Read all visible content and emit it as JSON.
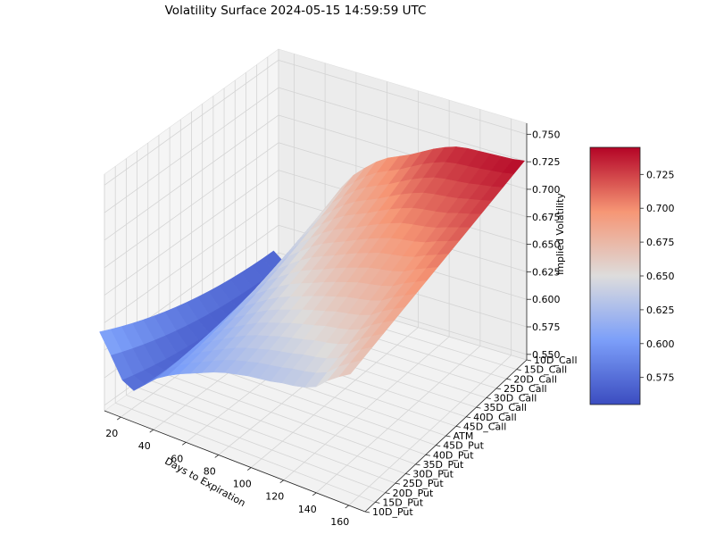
{
  "chart_data": {
    "type": "surface3d",
    "title": "Volatility Surface 2024-05-15 14:59:59 UTC",
    "xlabel": "Days to Expiration",
    "ylabel": "",
    "zlabel": "Implied Volatility",
    "colormap": "coolwarm",
    "x_ticks": [
      20,
      40,
      60,
      80,
      100,
      120,
      140,
      160
    ],
    "y_categories": [
      "10D_Put",
      "15D_Put",
      "20D_Put",
      "25D_Put",
      "30D_Put",
      "35D_Put",
      "40D_Put",
      "45D_Put",
      "ATM",
      "45D_Call",
      "40D_Call",
      "35D_Call",
      "30D_Call",
      "25D_Call",
      "20D_Call",
      "15D_Call",
      "10D_Call"
    ],
    "z_ticks": [
      "0.550",
      "0.575",
      "0.600",
      "0.625",
      "0.650",
      "0.675",
      "0.700",
      "0.725",
      "0.750"
    ],
    "xlim": [
      10,
      170
    ],
    "zlim": [
      0.545,
      0.76
    ],
    "colorbar": {
      "ticks": [
        "0.575",
        "0.600",
        "0.625",
        "0.650",
        "0.675",
        "0.700",
        "0.725"
      ],
      "range": [
        0.555,
        0.745
      ]
    },
    "days": [
      7,
      14,
      21,
      28,
      35,
      42,
      49,
      56,
      63,
      70,
      77,
      84,
      91,
      98,
      105,
      112,
      119,
      126,
      133,
      140,
      147,
      154,
      161
    ],
    "iv_front": [
      0.605,
      0.588,
      0.57,
      0.565,
      0.575,
      0.585,
      0.592,
      0.598,
      0.603,
      0.608,
      0.613,
      0.617,
      0.62,
      0.623,
      0.625,
      0.627,
      0.63,
      0.632,
      0.635,
      0.64,
      0.65,
      0.658,
      0.665
    ],
    "iv_back": [
      0.565,
      0.558,
      0.56,
      0.575,
      0.6,
      0.628,
      0.65,
      0.665,
      0.676,
      0.686,
      0.694,
      0.7,
      0.706,
      0.713,
      0.72,
      0.726,
      0.731,
      0.734,
      0.736,
      0.738,
      0.74,
      0.742,
      0.745
    ]
  }
}
